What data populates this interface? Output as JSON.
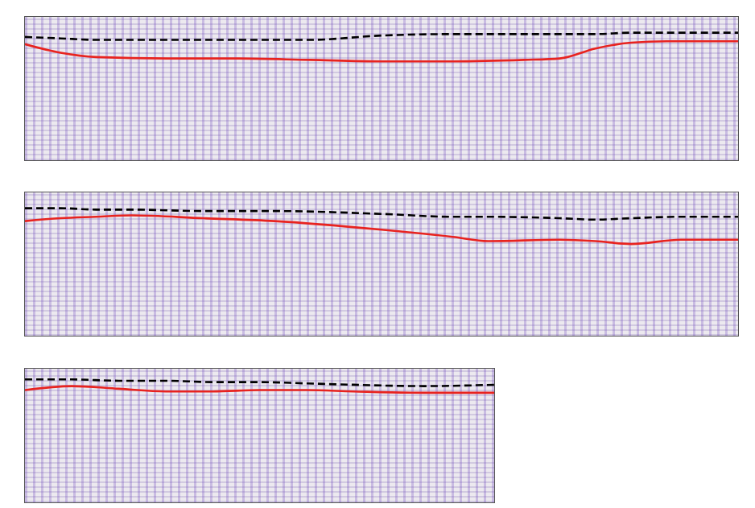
{
  "chart_data": [
    {
      "type": "line",
      "xlim": [
        0,
        100
      ],
      "ylim": [
        0,
        100
      ],
      "tick_labels": false,
      "x": [
        0,
        5,
        10,
        20,
        30,
        40,
        50,
        60,
        70,
        75,
        80,
        85,
        90,
        100
      ],
      "series": [
        {
          "color": "#000000",
          "line_style": "dashed",
          "values": [
            14,
            15,
            16,
            16,
            16,
            16,
            13,
            12,
            12,
            12,
            12,
            11,
            11,
            11
          ]
        },
        {
          "color": "#e8231f",
          "line_style": "solid",
          "values": [
            19,
            25,
            28,
            29,
            29,
            30,
            31,
            31,
            30,
            29,
            22,
            18,
            17,
            17
          ]
        }
      ]
    },
    {
      "type": "line",
      "xlim": [
        0,
        100
      ],
      "ylim": [
        0,
        100
      ],
      "tick_labels": false,
      "x": [
        0,
        5,
        10,
        15,
        25,
        35,
        50,
        60,
        65,
        75,
        80,
        85,
        92,
        100
      ],
      "series": [
        {
          "color": "#000000",
          "line_style": "dashed",
          "values": [
            11,
            11,
            12,
            12,
            13,
            13,
            15,
            17,
            17,
            18,
            19,
            18,
            17,
            17
          ]
        },
        {
          "color": "#e8231f",
          "line_style": "solid",
          "values": [
            20,
            18,
            17,
            16,
            18,
            20,
            26,
            31,
            34,
            33,
            34,
            36,
            33,
            33
          ]
        }
      ]
    },
    {
      "type": "line",
      "xlim": [
        0,
        100
      ],
      "ylim": [
        0,
        100
      ],
      "tick_labels": false,
      "x": [
        0,
        10,
        20,
        30,
        40,
        50,
        60,
        70,
        85,
        100
      ],
      "series": [
        {
          "color": "#000000",
          "line_style": "dashed",
          "values": [
            8,
            8,
            9,
            9,
            10,
            10,
            11,
            12,
            13,
            12
          ]
        },
        {
          "color": "#e8231f",
          "line_style": "solid",
          "values": [
            16,
            13,
            15,
            17,
            17,
            16,
            16,
            17,
            18,
            18
          ]
        }
      ]
    }
  ]
}
